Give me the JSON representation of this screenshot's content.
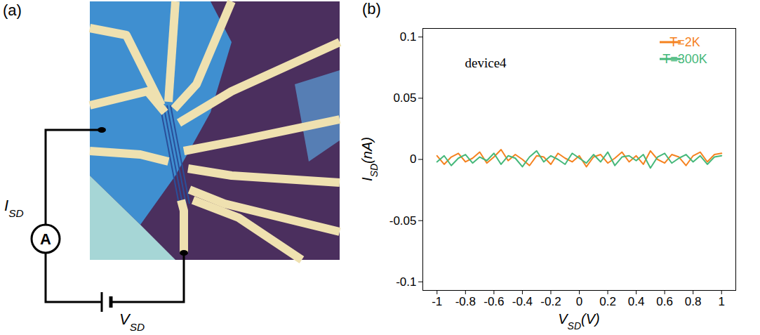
{
  "panel_a": {
    "label": "(a)",
    "current_label": "ISD",
    "voltage_label": "VSD",
    "meter": "A",
    "subscript": "SD"
  },
  "chart_data": {
    "type": "line",
    "panel_label": "(b)",
    "annotation": "device4",
    "x_label": "VSD(V)",
    "y_label": "ISD(nA)",
    "label_subscript": "SD",
    "x": [
      -1,
      -0.95,
      -0.9,
      -0.85,
      -0.8,
      -0.75,
      -0.7,
      -0.65,
      -0.6,
      -0.55,
      -0.5,
      -0.45,
      -0.4,
      -0.35,
      -0.3,
      -0.25,
      -0.2,
      -0.15,
      -0.1,
      -0.05,
      0,
      0.05,
      0.1,
      0.15,
      0.2,
      0.25,
      0.3,
      0.35,
      0.4,
      0.45,
      0.5,
      0.55,
      0.6,
      0.65,
      0.7,
      0.75,
      0.8,
      0.85,
      0.9,
      0.95,
      1
    ],
    "series": [
      {
        "name": "T=2K",
        "color": "#f5821f",
        "values": [
          0.003,
          -0.004,
          0.002,
          0.005,
          -0.002,
          0.001,
          0.006,
          -0.003,
          0.002,
          0.008,
          -0.001,
          0.004,
          0.0,
          -0.005,
          0.003,
          0.002,
          -0.004,
          0.005,
          0.001,
          -0.002,
          0.003,
          -0.006,
          0.002,
          0.004,
          -0.003,
          0.001,
          0.006,
          -0.002,
          0.003,
          -0.004,
          0.007,
          0.0,
          -0.003,
          0.004,
          0.002,
          -0.005,
          0.003,
          0.006,
          -0.002,
          0.004,
          0.005
        ]
      },
      {
        "name": "T=300K",
        "color": "#45b87a",
        "values": [
          -0.002,
          0.003,
          -0.005,
          0.001,
          0.004,
          -0.003,
          0.002,
          -0.001,
          0.005,
          -0.004,
          0.003,
          0.001,
          -0.006,
          0.002,
          0.007,
          -0.002,
          0.003,
          0.0,
          -0.004,
          0.005,
          0.001,
          -0.003,
          0.004,
          -0.002,
          0.006,
          -0.005,
          0.002,
          0.003,
          -0.001,
          0.004,
          -0.007,
          0.002,
          0.005,
          -0.003,
          0.001,
          0.004,
          -0.002,
          0.003,
          -0.004,
          0.002,
          0.003
        ]
      }
    ],
    "xlim": [
      -1.1,
      1.1
    ],
    "xticks": [
      -1,
      -0.8,
      -0.6,
      -0.4,
      -0.2,
      0,
      0.2,
      0.4,
      0.6,
      0.8,
      1
    ],
    "ylim": [
      -0.107,
      0.107
    ],
    "yticks": [
      -0.1,
      -0.05,
      0,
      0.05,
      0.1
    ],
    "legend": "top-right",
    "grid": false
  }
}
